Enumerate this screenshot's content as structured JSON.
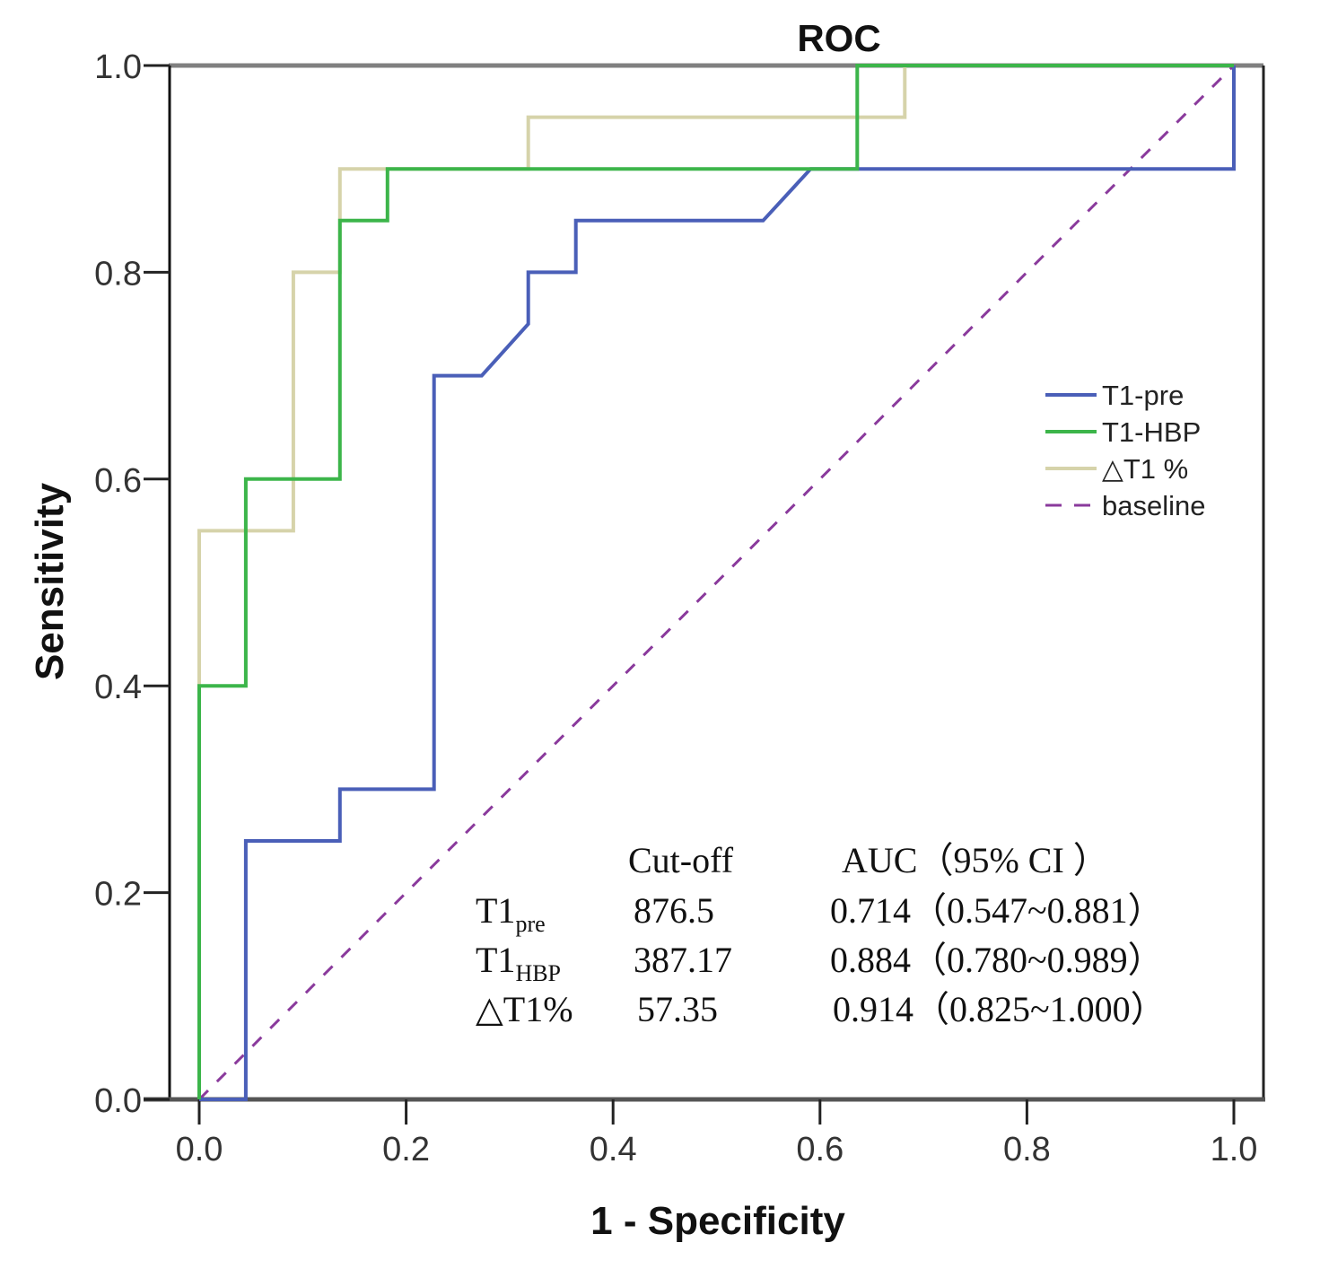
{
  "chart_data": {
    "type": "line",
    "title": "ROC",
    "xlabel": "1 - Specificity",
    "ylabel": "Sensitivity",
    "xlim": [
      0,
      1
    ],
    "ylim": [
      0,
      1
    ],
    "xticks": [
      "0.0",
      "0.2",
      "0.4",
      "0.6",
      "0.8",
      "1.0"
    ],
    "yticks": [
      "0.0",
      "0.2",
      "0.4",
      "0.6",
      "0.8",
      "1.0"
    ],
    "xtick_values": [
      0,
      0.2,
      0.4,
      0.6,
      0.8,
      1.0
    ],
    "ytick_values": [
      0,
      0.2,
      0.4,
      0.6,
      0.8,
      1.0
    ],
    "grid": false,
    "legend_position": "center-right",
    "series": [
      {
        "name": "T1-pre",
        "color": "#4a5fb8",
        "dash": false,
        "points": [
          [
            0,
            0
          ],
          [
            0.045,
            0
          ],
          [
            0.045,
            0.25
          ],
          [
            0.136,
            0.25
          ],
          [
            0.136,
            0.3
          ],
          [
            0.227,
            0.3
          ],
          [
            0.227,
            0.7
          ],
          [
            0.273,
            0.7
          ],
          [
            0.318,
            0.75
          ],
          [
            0.318,
            0.8
          ],
          [
            0.364,
            0.8
          ],
          [
            0.364,
            0.85
          ],
          [
            0.545,
            0.85
          ],
          [
            0.591,
            0.9
          ],
          [
            1.0,
            0.9
          ],
          [
            1.0,
            1.0
          ]
        ]
      },
      {
        "name": "T1-HBP",
        "color": "#3cb54a",
        "dash": false,
        "points": [
          [
            0,
            0
          ],
          [
            0,
            0.4
          ],
          [
            0.045,
            0.4
          ],
          [
            0.045,
            0.6
          ],
          [
            0.136,
            0.6
          ],
          [
            0.136,
            0.85
          ],
          [
            0.182,
            0.85
          ],
          [
            0.182,
            0.9
          ],
          [
            0.636,
            0.9
          ],
          [
            0.636,
            1.0
          ],
          [
            1.0,
            1.0
          ]
        ]
      },
      {
        "name": "△T1 %",
        "color": "#d6d3aa",
        "dash": false,
        "points": [
          [
            0,
            0
          ],
          [
            0,
            0.55
          ],
          [
            0.091,
            0.55
          ],
          [
            0.091,
            0.8
          ],
          [
            0.136,
            0.8
          ],
          [
            0.136,
            0.9
          ],
          [
            0.318,
            0.9
          ],
          [
            0.318,
            0.95
          ],
          [
            0.682,
            0.95
          ],
          [
            0.682,
            1.0
          ],
          [
            1.0,
            1.0
          ]
        ]
      },
      {
        "name": "baseline",
        "color": "#8a3a9c",
        "dash": true,
        "points": [
          [
            0,
            0
          ],
          [
            1,
            1
          ]
        ]
      }
    ],
    "annotation_table": {
      "headers": [
        "",
        "Cut-off",
        "AUC（95% CI ）"
      ],
      "rows": [
        {
          "label": "T1",
          "sub": "pre",
          "cutoff": "876.5",
          "auc": "0.714（0.547~0.881）"
        },
        {
          "label": "T1",
          "sub": "HBP",
          "cutoff": "387.17",
          "auc": "0.884（0.780~0.989）"
        },
        {
          "label": "△T1%",
          "sub": "",
          "cutoff": "57.35",
          "auc": "0.914（0.825~1.000）"
        }
      ]
    }
  }
}
